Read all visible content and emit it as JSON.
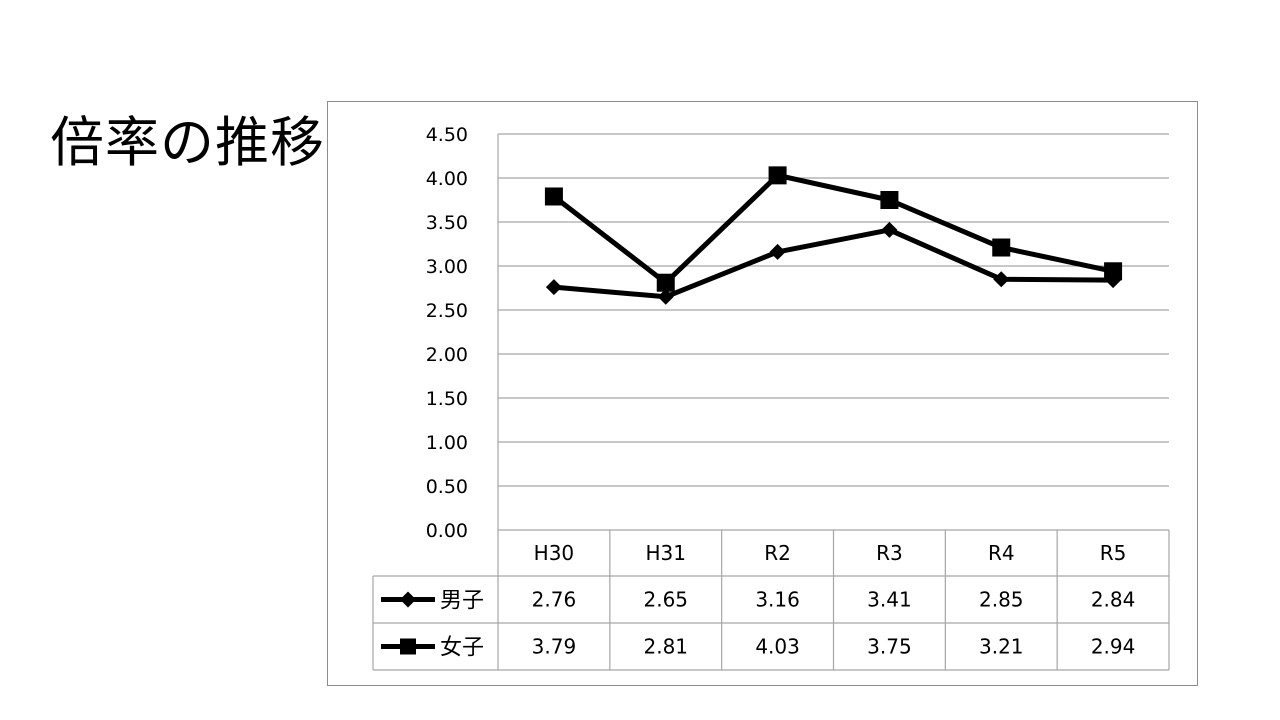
{
  "title": "倍率の推移",
  "chart_data": {
    "type": "line",
    "title": "",
    "xlabel": "",
    "ylabel": "",
    "categories": [
      "H30",
      "H31",
      "R2",
      "R3",
      "R4",
      "R5"
    ],
    "ylim": [
      0,
      4.5
    ],
    "yticks": [
      "0.00",
      "0.50",
      "1.00",
      "1.50",
      "2.00",
      "2.50",
      "3.00",
      "3.50",
      "4.00",
      "4.50"
    ],
    "grid": true,
    "legend": "data-table",
    "series": [
      {
        "name": "男子",
        "marker": "diamond",
        "values": [
          2.76,
          2.65,
          3.16,
          3.41,
          2.85,
          2.84
        ],
        "labels": [
          "2.76",
          "2.65",
          "3.16",
          "3.41",
          "2.85",
          "2.84"
        ]
      },
      {
        "name": "女子",
        "marker": "square",
        "values": [
          3.79,
          2.81,
          4.03,
          3.75,
          3.21,
          2.94
        ],
        "labels": [
          "3.79",
          "2.81",
          "4.03",
          "3.75",
          "3.21",
          "2.94"
        ]
      }
    ],
    "colors": {
      "line": "#000000",
      "grid": "#a6a6a6",
      "border": "#8c8c8c"
    }
  }
}
